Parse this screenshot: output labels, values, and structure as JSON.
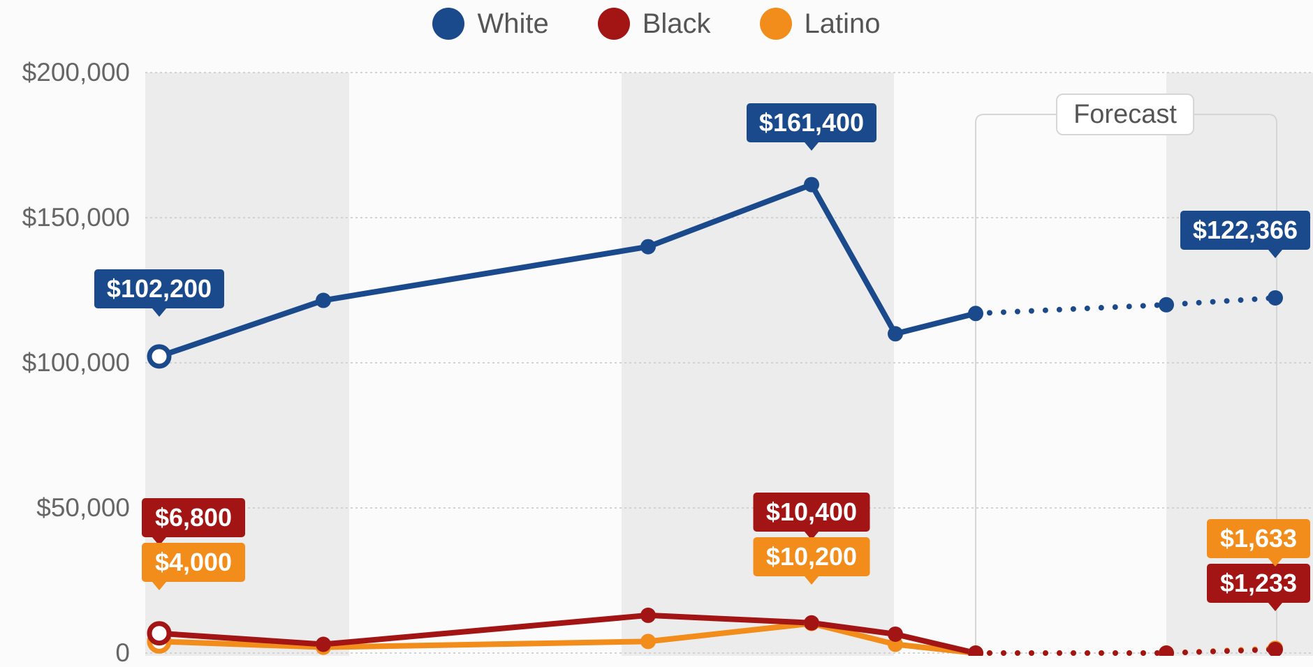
{
  "legend": [
    {
      "label": "White",
      "color": "#1b4a8c"
    },
    {
      "label": "Black",
      "color": "#a31515"
    },
    {
      "label": "Latino",
      "color": "#f28c1a"
    }
  ],
  "forecast_label": "Forecast",
  "y_tick_labels": [
    "$200,000",
    "$150,000",
    "$100,000",
    "$50,000",
    "0"
  ],
  "chart_data": {
    "type": "line",
    "title": "",
    "xlabel": "",
    "ylabel": "",
    "ylim": [
      0,
      200000
    ],
    "yticks": [
      0,
      50000,
      100000,
      150000,
      200000
    ],
    "grid": true,
    "legend_position": "top",
    "forecast_from_index": 6,
    "series": [
      {
        "name": "White",
        "color": "#1b4a8c",
        "values": [
          102200,
          121500,
          140000,
          161400,
          110000,
          117000,
          120000,
          122366
        ],
        "labels": [
          {
            "index": 0,
            "text": "$102,200"
          },
          {
            "index": 3,
            "text": "$161,400"
          },
          {
            "index": 7,
            "text": "$122,366"
          }
        ]
      },
      {
        "name": "Black",
        "color": "#a31515",
        "values": [
          6800,
          3000,
          13000,
          10400,
          6500,
          0,
          0,
          1233
        ],
        "labels": [
          {
            "index": 0,
            "text": "$6,800"
          },
          {
            "index": 3,
            "text": "$10,400"
          },
          {
            "index": 7,
            "text": "$1,233"
          }
        ]
      },
      {
        "name": "Latino",
        "color": "#f28c1a",
        "values": [
          4000,
          2000,
          4000,
          10200,
          3000,
          0,
          0,
          1633
        ],
        "labels": [
          {
            "index": 0,
            "text": "$4,000"
          },
          {
            "index": 3,
            "text": "$10,200"
          },
          {
            "index": 7,
            "text": "$1,633"
          }
        ]
      }
    ]
  }
}
